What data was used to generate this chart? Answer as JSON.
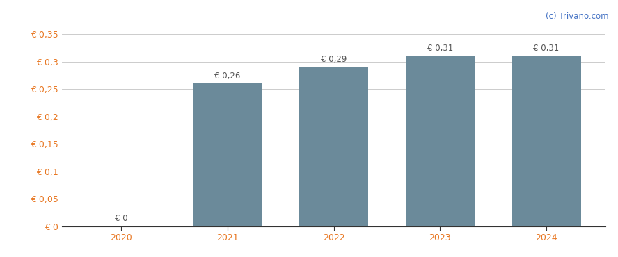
{
  "categories": [
    2020,
    2021,
    2022,
    2023,
    2024
  ],
  "values": [
    0.0,
    0.26,
    0.29,
    0.31,
    0.31
  ],
  "bar_color": "#6b8a9a",
  "bar_labels": [
    "€ 0",
    "€ 0,26",
    "€ 0,29",
    "€ 0,31",
    "€ 0,31"
  ],
  "ytick_labels": [
    "€ 0",
    "€ 0,05",
    "€ 0,1",
    "€ 0,15",
    "€ 0,2",
    "€ 0,25",
    "€ 0,3",
    "€ 0,35"
  ],
  "ytick_values": [
    0,
    0.05,
    0.1,
    0.15,
    0.2,
    0.25,
    0.3,
    0.35
  ],
  "ylim": [
    0,
    0.375
  ],
  "background_color": "#ffffff",
  "grid_color": "#cccccc",
  "tick_color": "#e87722",
  "bar_label_color": "#555555",
  "watermark": "(c) Trivano.com",
  "watermark_color": "#4472c4",
  "bar_label_fontsize": 8.5,
  "axis_label_fontsize": 9,
  "watermark_fontsize": 8.5,
  "bar_width": 0.65
}
